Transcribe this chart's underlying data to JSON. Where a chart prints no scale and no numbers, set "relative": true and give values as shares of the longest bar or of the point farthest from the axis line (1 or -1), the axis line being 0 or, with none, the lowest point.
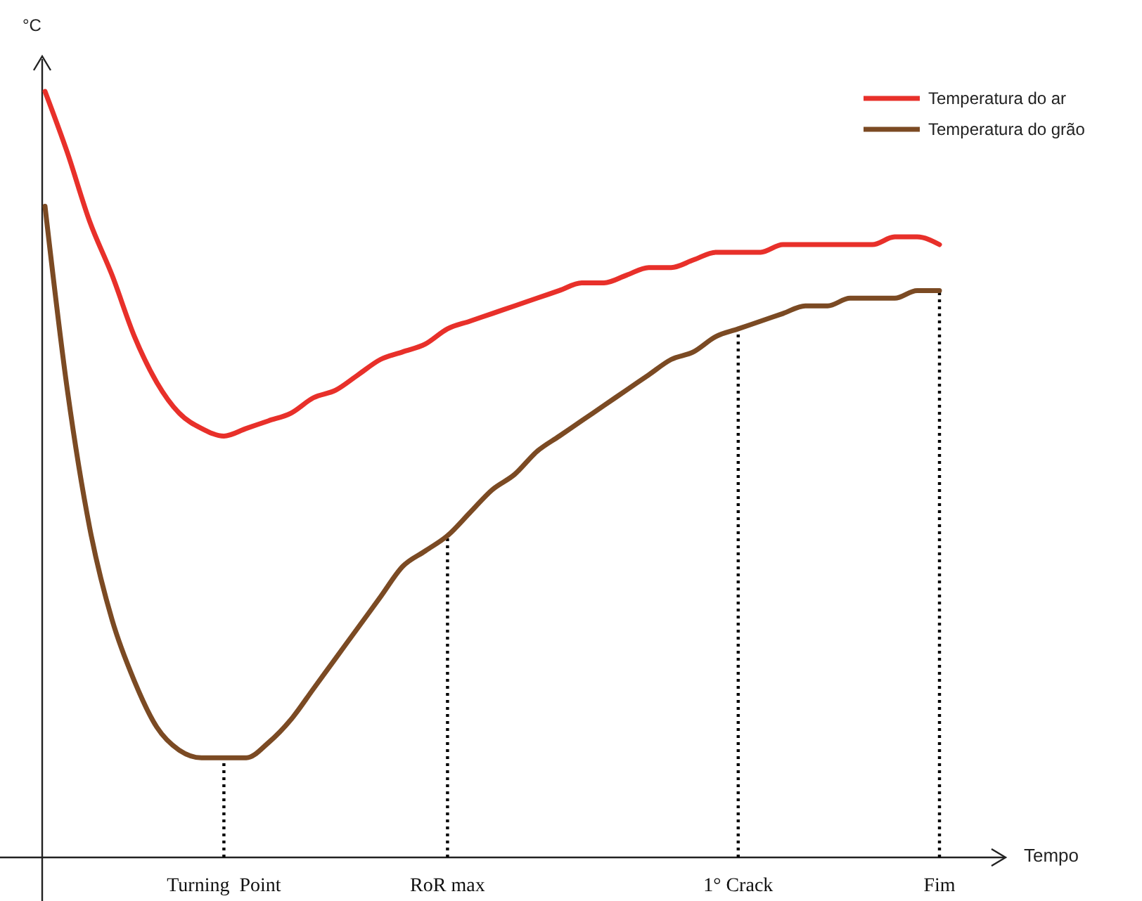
{
  "chart_data": {
    "type": "line",
    "relative": true,
    "xlabel": "Tempo",
    "ylabel": "°C",
    "legend": "top right",
    "line_style": "solid",
    "marker": "none",
    "grid": false,
    "categories": [
      null,
      null,
      null,
      null,
      null,
      null,
      null,
      null,
      "Turning  Point",
      null,
      null,
      null,
      null,
      null,
      null,
      null,
      null,
      null,
      "RoR max",
      null,
      null,
      null,
      null,
      null,
      null,
      null,
      null,
      null,
      null,
      null,
      null,
      "1° Crack",
      null,
      null,
      null,
      null,
      null,
      null,
      null,
      null,
      "Fim"
    ],
    "series": [
      {
        "name": "Temperatura do ar",
        "color": "#e8302a",
        "values": [
          1.0,
          0.92,
          0.83,
          0.76,
          0.68,
          0.62,
          0.58,
          0.56,
          0.55,
          0.56,
          0.57,
          0.58,
          0.6,
          0.61,
          0.63,
          0.65,
          0.66,
          0.67,
          0.69,
          0.7,
          0.71,
          0.72,
          0.73,
          0.74,
          0.75,
          0.75,
          0.76,
          0.77,
          0.77,
          0.78,
          0.79,
          0.79,
          0.79,
          0.8,
          0.8,
          0.8,
          0.8,
          0.8,
          0.81,
          0.81,
          0.8
        ]
      },
      {
        "name": "Temperatura do grão",
        "color": "#7b4a23",
        "values": [
          0.85,
          0.61,
          0.43,
          0.31,
          0.23,
          0.17,
          0.14,
          0.13,
          0.13,
          0.13,
          0.15,
          0.18,
          0.22,
          0.26,
          0.3,
          0.34,
          0.38,
          0.4,
          0.42,
          0.45,
          0.48,
          0.5,
          0.53,
          0.55,
          0.57,
          0.59,
          0.61,
          0.63,
          0.65,
          0.66,
          0.68,
          0.69,
          0.7,
          0.71,
          0.72,
          0.72,
          0.73,
          0.73,
          0.73,
          0.74,
          0.74
        ]
      }
    ],
    "ref_lines": [
      {
        "axis": "x",
        "value": "Turning  Point",
        "line_style": "dotted",
        "color": "#000000"
      },
      {
        "axis": "x",
        "value": "RoR max",
        "line_style": "dotted",
        "color": "#000000"
      },
      {
        "axis": "x",
        "value": "1° Crack",
        "line_style": "dotted",
        "color": "#000000"
      },
      {
        "axis": "x",
        "value": "Fim",
        "line_style": "dotted",
        "color": "#000000"
      }
    ]
  }
}
